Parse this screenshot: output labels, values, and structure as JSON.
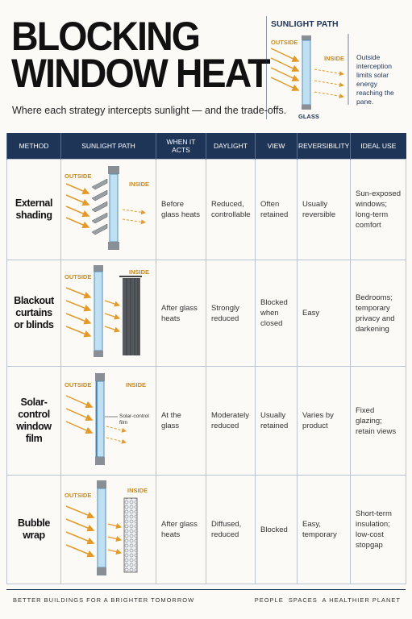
{
  "header": {
    "title_lines": [
      "BLOCKING",
      "WINDOW HEAT"
    ],
    "subtitle": "Where each strategy intercepts sunlight — and the trade-offs."
  },
  "legend": {
    "title": "SUNLIGHT PATH",
    "outside": "OUTSIDE",
    "inside": "INSIDE",
    "glass": "GLASS",
    "note": "Outside interception limits solar energy reaching the pane."
  },
  "table": {
    "columns": [
      "METHOD",
      "SUNLIGHT PATH",
      "WHEN IT ACTS",
      "DAYLIGHT",
      "VIEW",
      "REVERSIBILITY",
      "IDEAL USE"
    ],
    "rows": [
      {
        "method": "External shading",
        "outside": "OUTSIDE",
        "inside": "INSIDE",
        "when": "Before glass heats",
        "daylight": "Reduced, controllable",
        "view": "Often retained",
        "reversibility": "Usually reversible",
        "ideal": "Sun-exposed windows; long-term comfort"
      },
      {
        "method": "Blackout curtains or blinds",
        "outside": "OUTSIDE",
        "inside": "INSIDE",
        "when": "After glass heats",
        "daylight": "Strongly reduced",
        "view": "Blocked when closed",
        "reversibility": "Easy",
        "ideal": "Bedrooms; temporary privacy and darkening"
      },
      {
        "method": "Solar-control window film",
        "outside": "OUTSIDE",
        "inside": "INSIDE",
        "film": "Solar-control film",
        "when": "At the glass",
        "daylight": "Moderately reduced",
        "view": "Usually retained",
        "reversibility": "Varies by product",
        "ideal": "Fixed glazing; retain views"
      },
      {
        "method": "Bubble wrap",
        "outside": "OUTSIDE",
        "inside": "INSIDE",
        "when": "After glass heats",
        "daylight": "Diffused, reduced",
        "view": "Blocked",
        "reversibility": "Easy, temporary",
        "ideal": "Short-term insulation; low-cost stopgap"
      }
    ]
  },
  "footer": {
    "left": "BETTER BUILDINGS FOR A BRIGHTER TOMORROW",
    "right": "PEOPLE  SPACES  A HEALTHIER PLANET"
  }
}
